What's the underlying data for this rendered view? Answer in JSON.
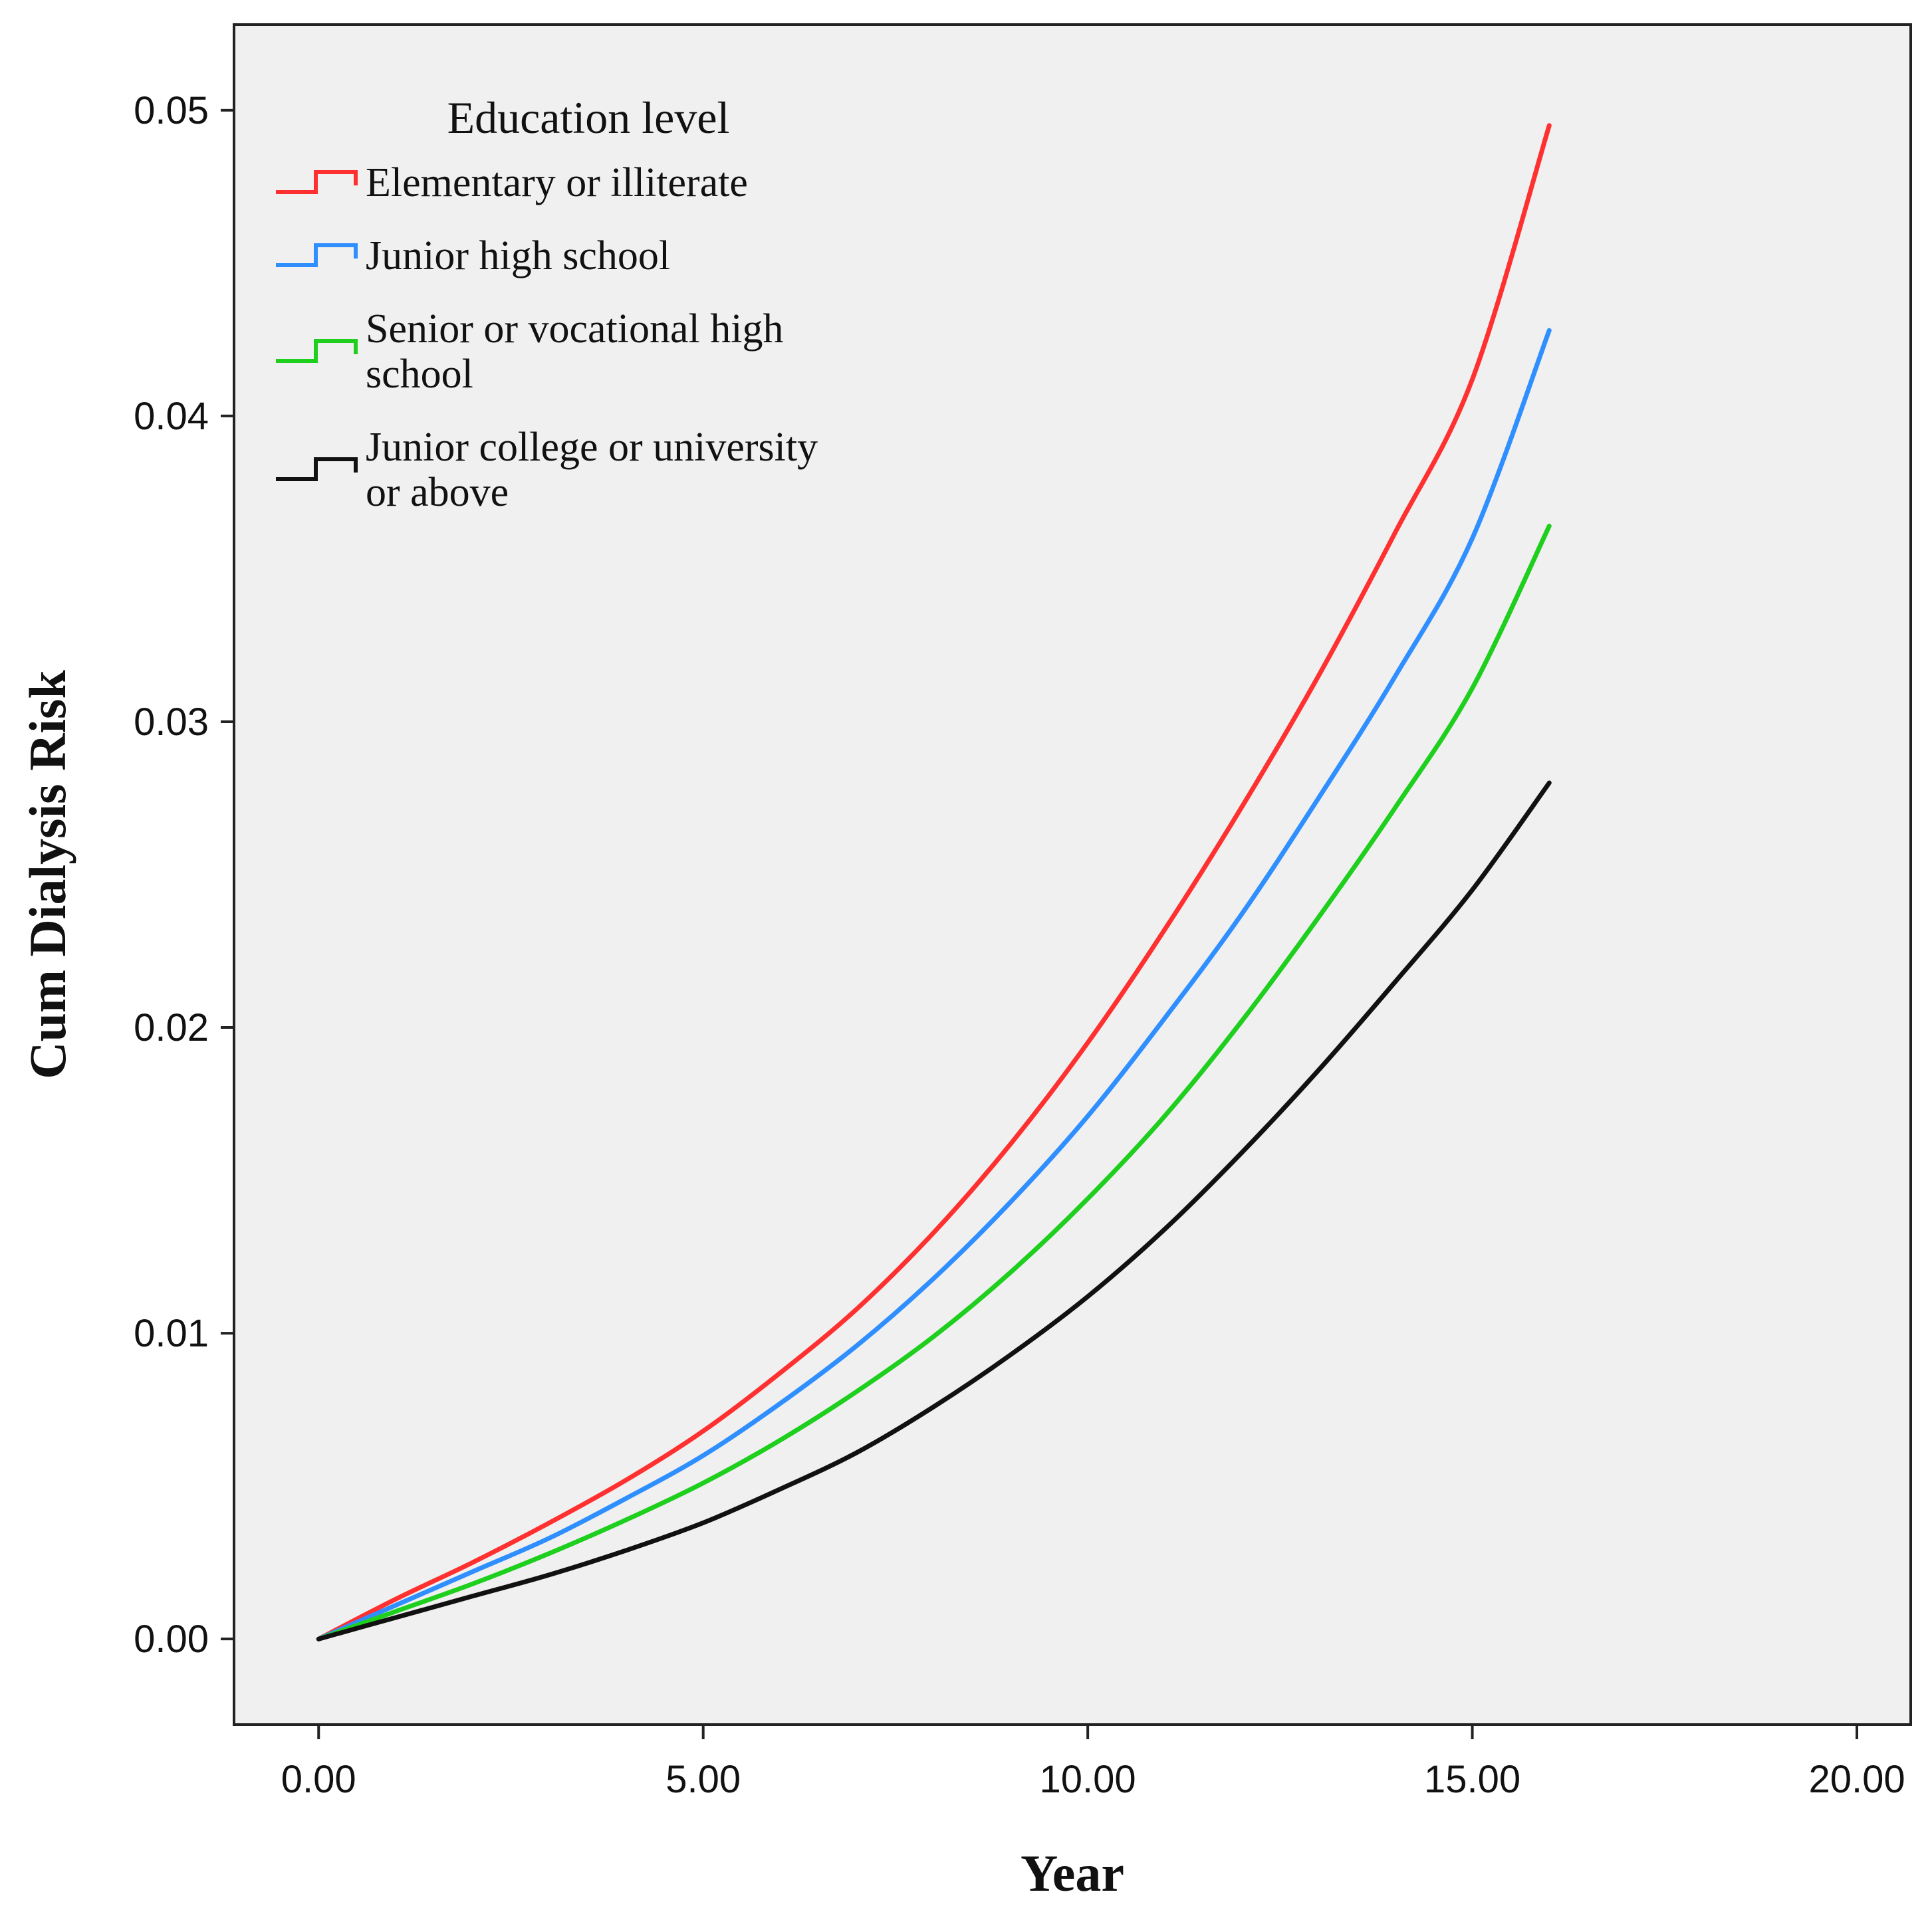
{
  "chart_data": {
    "type": "line",
    "title": "",
    "xlabel": "Year",
    "ylabel": "Cum Dialysis Risk",
    "xlim": [
      -1.1,
      20.7
    ],
    "ylim": [
      -0.0028,
      0.0528
    ],
    "xticks": [
      0,
      5,
      10,
      15,
      20
    ],
    "xtick_labels": [
      "0.00",
      "5.00",
      "10.00",
      "15.00",
      "20.00"
    ],
    "yticks": [
      0,
      0.01,
      0.02,
      0.03,
      0.04,
      0.05
    ],
    "ytick_labels": [
      "0.00",
      "0.01",
      "0.02",
      "0.03",
      "0.04",
      "0.05"
    ],
    "grid": false,
    "legend": {
      "title": "Education level",
      "position": "top-left"
    },
    "x": [
      0,
      1,
      2,
      3,
      4,
      5,
      6,
      7,
      8,
      9,
      10,
      11,
      12,
      13,
      14,
      15,
      16
    ],
    "series": [
      {
        "name": "Elementary or illiterate",
        "label_lines": [
          "Elementary or illiterate"
        ],
        "color": "#ff3030",
        "values": [
          0,
          0.0013,
          0.0025,
          0.0038,
          0.0052,
          0.0068,
          0.0087,
          0.0108,
          0.0133,
          0.0162,
          0.0195,
          0.0232,
          0.0272,
          0.0315,
          0.0362,
          0.0412,
          0.0495
        ]
      },
      {
        "name": "Junior high school",
        "label_lines": [
          "Junior high school"
        ],
        "color": "#2f8fff",
        "values": [
          0,
          0.0011,
          0.0022,
          0.0033,
          0.0046,
          0.006,
          0.0077,
          0.0096,
          0.0118,
          0.0143,
          0.0171,
          0.0203,
          0.0237,
          0.0275,
          0.0315,
          0.036,
          0.0428
        ]
      },
      {
        "name": "Senior or vocational high school",
        "label_lines": [
          "Senior or vocational high",
          "school"
        ],
        "color": "#1ecf1e",
        "values": [
          0,
          0.0009,
          0.0018,
          0.0028,
          0.0039,
          0.0051,
          0.0065,
          0.0081,
          0.0099,
          0.012,
          0.0144,
          0.0171,
          0.0202,
          0.0236,
          0.0272,
          0.0311,
          0.0364
        ]
      },
      {
        "name": "Junior college or university or above",
        "label_lines": [
          "Junior college or university",
          "or above"
        ],
        "color": "#111111",
        "values": [
          0,
          0.0007,
          0.0014,
          0.0021,
          0.0029,
          0.0038,
          0.0049,
          0.0061,
          0.0076,
          0.0093,
          0.0112,
          0.0134,
          0.0159,
          0.0186,
          0.0215,
          0.0245,
          0.028
        ]
      }
    ]
  }
}
